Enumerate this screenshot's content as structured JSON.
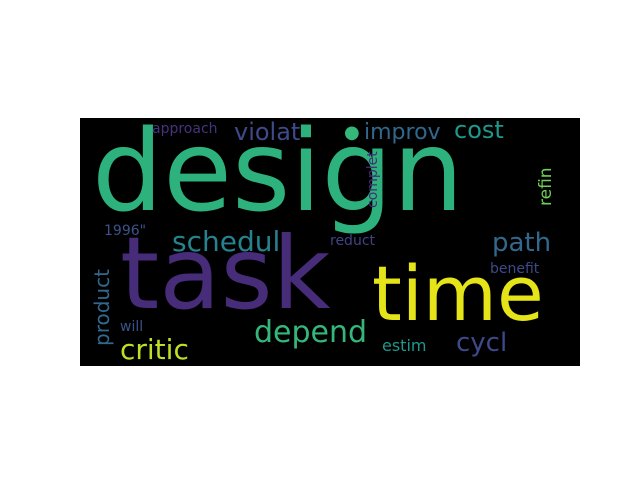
{
  "word_cloud": {
    "words": [
      {
        "text": "design",
        "color": "#2db27d"
      },
      {
        "text": "task",
        "color": "#472c7a"
      },
      {
        "text": "time",
        "color": "#e5e419"
      },
      {
        "text": "schedul",
        "color": "#26828e"
      },
      {
        "text": "depend",
        "color": "#35b779"
      },
      {
        "text": "critic",
        "color": "#bddf26"
      },
      {
        "text": "path",
        "color": "#31688e"
      },
      {
        "text": "cycl",
        "color": "#3e4989"
      },
      {
        "text": "violat",
        "color": "#3e4a89"
      },
      {
        "text": "improv",
        "color": "#31688e"
      },
      {
        "text": "cost",
        "color": "#1f988b"
      },
      {
        "text": "product",
        "color": "#31688e"
      },
      {
        "text": "refin",
        "color": "#6ece58"
      },
      {
        "text": "approach",
        "color": "#46337e"
      },
      {
        "text": "complet",
        "color": "#472c7a"
      },
      {
        "text": "1996\"",
        "color": "#3b528b"
      },
      {
        "text": "reduct",
        "color": "#404387"
      },
      {
        "text": "benefit",
        "color": "#3e4989"
      },
      {
        "text": "estim",
        "color": "#1f988b"
      },
      {
        "text": "will",
        "color": "#3b528b"
      },
      {
        "text": "●",
        "color": "#35b779"
      }
    ]
  }
}
